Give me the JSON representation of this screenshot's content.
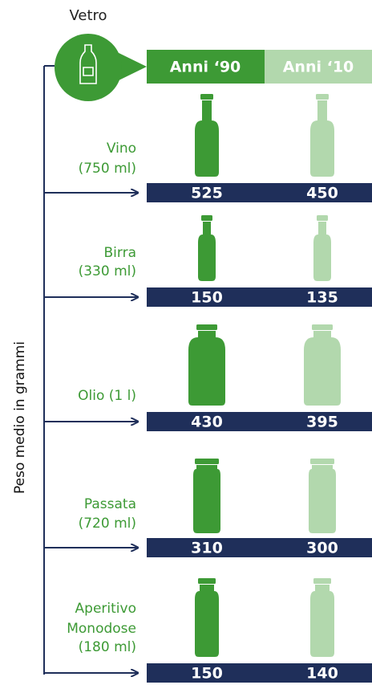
{
  "title": "Vetro",
  "columns": [
    "Anni ‘90",
    "Anni ‘10"
  ],
  "axis_label": "Peso medio in grammi",
  "items": [
    {
      "label": [
        "Vino",
        "(750 ml)"
      ],
      "values": [
        525,
        450
      ]
    },
    {
      "label": [
        "Birra",
        "(330 ml)"
      ],
      "values": [
        150,
        135
      ]
    },
    {
      "label": [
        "Olio (1 l)"
      ],
      "values": [
        430,
        395
      ]
    },
    {
      "label": [
        "Passata",
        "(720 ml)"
      ],
      "values": [
        310,
        300
      ]
    },
    {
      "label": [
        "Aperitivo",
        "Monodose",
        "(180 ml)"
      ],
      "values": [
        150,
        140
      ]
    }
  ]
}
